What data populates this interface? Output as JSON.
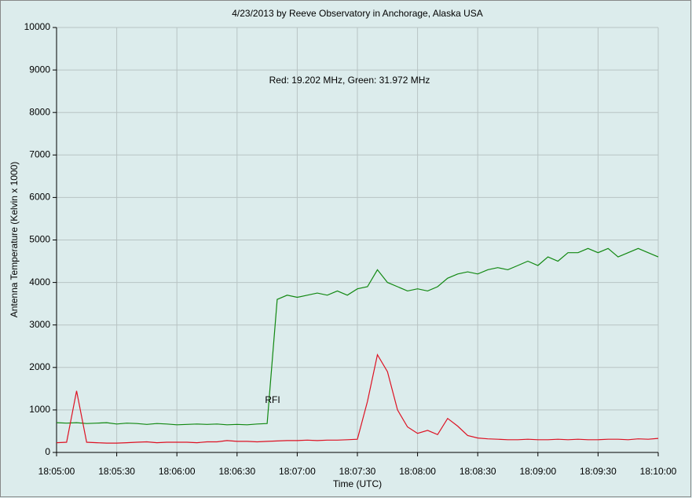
{
  "chart_data": {
    "type": "line",
    "title": "4/23/2013  by  Reeve Observatory  in  Anchorage, Alaska  USA",
    "x_label": "Time (UTC)",
    "y_label": "Antenna Temperature (Kelvin x 1000)",
    "annotations": [
      "Red: 19.202 MHz, Green: 31.972 MHz",
      "RFI"
    ],
    "x": [
      "18:05:00",
      "18:05:05",
      "18:05:10",
      "18:05:15",
      "18:05:20",
      "18:05:25",
      "18:05:30",
      "18:05:35",
      "18:05:40",
      "18:05:45",
      "18:05:50",
      "18:05:55",
      "18:06:00",
      "18:06:05",
      "18:06:10",
      "18:06:15",
      "18:06:20",
      "18:06:25",
      "18:06:30",
      "18:06:35",
      "18:06:40",
      "18:06:45",
      "18:06:50",
      "18:06:55",
      "18:07:00",
      "18:07:05",
      "18:07:10",
      "18:07:15",
      "18:07:20",
      "18:07:25",
      "18:07:30",
      "18:07:35",
      "18:07:40",
      "18:07:45",
      "18:07:50",
      "18:07:55",
      "18:08:00",
      "18:08:05",
      "18:08:10",
      "18:08:15",
      "18:08:20",
      "18:08:25",
      "18:08:30",
      "18:08:35",
      "18:08:40",
      "18:08:45",
      "18:08:50",
      "18:08:55",
      "18:09:00",
      "18:09:05",
      "18:09:10",
      "18:09:15",
      "18:09:20",
      "18:09:25",
      "18:09:30",
      "18:09:35",
      "18:09:40",
      "18:09:45",
      "18:09:50",
      "18:09:55",
      "18:10:00"
    ],
    "series": [
      {
        "color": "#118811",
        "values": [
          700,
          690,
          700,
          680,
          690,
          700,
          670,
          690,
          680,
          660,
          680,
          670,
          650,
          660,
          670,
          660,
          670,
          650,
          660,
          650,
          670,
          680,
          3600,
          3700,
          3650,
          3700,
          3750,
          3700,
          3800,
          3700,
          3850,
          3900,
          4300,
          4000,
          3900,
          3800,
          3850,
          3800,
          3900,
          4100,
          4200,
          4250,
          4200,
          4300,
          4350,
          4300,
          4400,
          4500,
          4400,
          4600,
          4500,
          4700,
          4700,
          4800,
          4700,
          4800,
          4600,
          4700,
          4800,
          4700,
          4600
        ]
      },
      {
        "color": "#dd1122",
        "values": [
          230,
          240,
          1450,
          240,
          230,
          220,
          220,
          230,
          240,
          250,
          230,
          240,
          240,
          240,
          230,
          250,
          250,
          280,
          260,
          260,
          250,
          260,
          270,
          280,
          280,
          290,
          280,
          290,
          290,
          300,
          310,
          1200,
          2300,
          1900,
          1000,
          600,
          450,
          520,
          420,
          800,
          620,
          400,
          340,
          320,
          310,
          300,
          300,
          310,
          300,
          300,
          310,
          300,
          310,
          300,
          300,
          310,
          310,
          300,
          320,
          310,
          330
        ]
      }
    ],
    "xlim": [
      "18:05:00",
      "18:10:00"
    ],
    "xticks": [
      "18:05:00",
      "18:05:30",
      "18:06:00",
      "18:06:30",
      "18:07:00",
      "18:07:30",
      "18:08:00",
      "18:08:30",
      "18:09:00",
      "18:09:30",
      "18:10:00"
    ],
    "ylim": [
      0,
      10000
    ],
    "yticks": [
      0,
      1000,
      2000,
      3000,
      4000,
      5000,
      6000,
      7000,
      8000,
      9000,
      10000
    ],
    "grid": true
  }
}
